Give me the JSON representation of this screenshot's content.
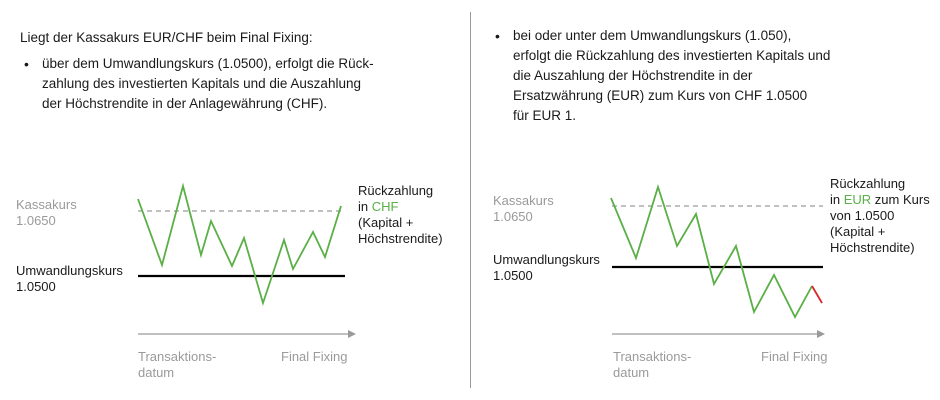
{
  "left": {
    "intro": "Liegt der Kassakurs EUR/CHF beim Final Fixing:",
    "bullet_lines": [
      "über dem Umwandlungskurs (1.0500), erfolgt die Rück-",
      "zahlung des investierten Kapitals und die Auszahlung",
      "der Höchstrendite in der Anlagewährung (CHF)."
    ],
    "kassakurs_label": "Kassakurs",
    "kassakurs_value": "1.0650",
    "umwandlung_label": "Umwandlungskurs",
    "umwandlung_value": "1.0500",
    "outcome_line1": "Rückzahlung",
    "outcome_in": "in ",
    "outcome_currency": "CHF",
    "outcome_line3": "(Kapital +",
    "outcome_line4": "Höchstrendite)",
    "axis_start_line1": "Transaktions-",
    "axis_start_line2": "datum",
    "axis_end": "Final Fixing"
  },
  "right": {
    "bullet_lines": [
      "bei oder unter dem Umwandlungskurs (1.050),",
      "erfolgt die Rückzahlung des investierten Kapitals und",
      "die Auszahlung der Höchstrendite in der",
      "Ersatzwährung (EUR) zum Kurs von CHF 1.0500",
      "für EUR 1."
    ],
    "kassakurs_label": "Kassakurs",
    "kassakurs_value": "1.0650",
    "umwandlung_label": "Umwandlungskurs",
    "umwandlung_value": "1.0500",
    "outcome_line1": "Rückzahlung",
    "outcome_in": "in ",
    "outcome_currency": "EUR",
    "outcome_rest": " zum Kurs",
    "outcome_line3": "von 1.0500",
    "outcome_line4": "(Kapital +",
    "outcome_line5": "Höchstrendite)",
    "axis_start_line1": "Transaktions-",
    "axis_start_line2": "datum",
    "axis_end": "Final Fixing"
  },
  "colors": {
    "price_line": "#5aaf46",
    "kassakurs_line": "#9a9a9a",
    "umwandlung_line": "#000000",
    "below_segment": "#d7282f",
    "axis": "#9a9a9a"
  }
}
